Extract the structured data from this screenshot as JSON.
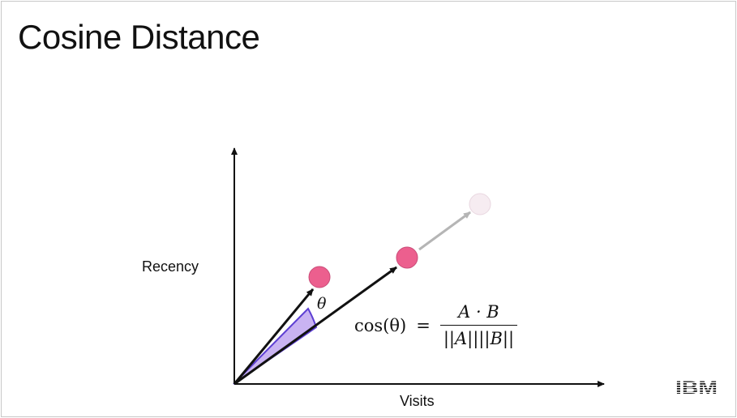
{
  "slide": {
    "title": "Cosine Distance"
  },
  "diagram": {
    "y_axis_label": "Recency",
    "x_axis_label": "Visits",
    "angle_label": "θ",
    "formula": {
      "lhs": "cos(θ)",
      "equals": "=",
      "numerator": "A · B",
      "denominator": "||A||||B||"
    },
    "colors": {
      "point": "#ec5f8e",
      "faded_point": "#f6ecf1",
      "angle_fill": "#c9b3f2",
      "angle_arc": "#5d3fd3",
      "vector": "#111111",
      "extension": "#b5b5b5",
      "logo": "#1b1b1b"
    }
  },
  "branding": {
    "logo": "IBM"
  }
}
